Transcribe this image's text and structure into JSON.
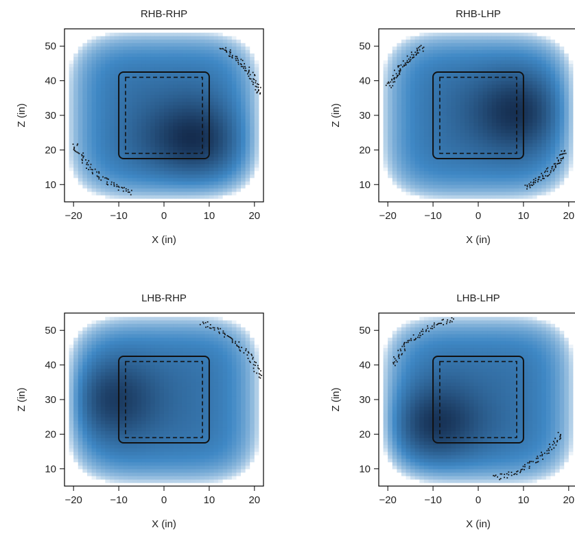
{
  "chart_data": [
    {
      "type": "heatmap",
      "title": "RHB-RHP",
      "xlabel": "X (in)",
      "ylabel": "Z (in)",
      "xlim": [
        -22,
        22
      ],
      "ylim": [
        5,
        55
      ],
      "xticks": [
        -20,
        -10,
        0,
        10,
        20
      ],
      "yticks": [
        10,
        20,
        30,
        40,
        50
      ],
      "density_peaks": [
        {
          "x": 7,
          "z": 23,
          "strength": 1.0,
          "spread": 8
        }
      ],
      "strike_zone_outer": {
        "x": [
          -10,
          10
        ],
        "z": [
          17.5,
          42.5
        ]
      },
      "strike_zone_inner": {
        "x": [
          -8.5,
          8.5
        ],
        "z": [
          19,
          41
        ]
      },
      "outlier_arcs": [
        {
          "cx": 0,
          "cz": 30,
          "rx": 22,
          "rz": 24,
          "from_deg": 15,
          "to_deg": 55
        },
        {
          "cx": 0,
          "cz": 30,
          "rx": 21,
          "rz": 24,
          "from_deg": 200,
          "to_deg": 250
        }
      ]
    },
    {
      "type": "heatmap",
      "title": "RHB-LHP",
      "xlabel": "X (in)",
      "ylabel": "Z (in)",
      "xlim": [
        -22,
        22
      ],
      "ylim": [
        5,
        55
      ],
      "xticks": [
        -20,
        -10,
        0,
        10,
        20
      ],
      "yticks": [
        10,
        20,
        30,
        40,
        50
      ],
      "density_peaks": [
        {
          "x": 10,
          "z": 31,
          "strength": 1.0,
          "spread": 8
        }
      ],
      "strike_zone_outer": {
        "x": [
          -10,
          10
        ],
        "z": [
          17.5,
          42.5
        ]
      },
      "strike_zone_inner": {
        "x": [
          -8.5,
          8.5
        ],
        "z": [
          19,
          41
        ]
      },
      "outlier_arcs": [
        {
          "cx": 0,
          "cz": 30,
          "rx": 21,
          "rz": 24,
          "from_deg": 125,
          "to_deg": 160
        },
        {
          "cx": 0,
          "cz": 30,
          "rx": 21,
          "rz": 24,
          "from_deg": 300,
          "to_deg": 335
        }
      ]
    },
    {
      "type": "heatmap",
      "title": "LHB-RHP",
      "xlabel": "X (in)",
      "ylabel": "Z (in)",
      "xlim": [
        -22,
        22
      ],
      "ylim": [
        5,
        55
      ],
      "xticks": [
        -20,
        -10,
        0,
        10,
        20
      ],
      "yticks": [
        10,
        20,
        30,
        40,
        50
      ],
      "density_peaks": [
        {
          "x": -14,
          "z": 30,
          "strength": 1.0,
          "spread": 8
        }
      ],
      "strike_zone_outer": {
        "x": [
          -10,
          10
        ],
        "z": [
          17.5,
          42.5
        ]
      },
      "strike_zone_inner": {
        "x": [
          -8.5,
          8.5
        ],
        "z": [
          19,
          41
        ]
      },
      "outlier_arcs": [
        {
          "cx": 0,
          "cz": 30,
          "rx": 22,
          "rz": 24,
          "from_deg": 15,
          "to_deg": 68
        }
      ]
    },
    {
      "type": "heatmap",
      "title": "LHB-LHP",
      "xlabel": "X (in)",
      "ylabel": "Z (in)",
      "xlim": [
        -22,
        22
      ],
      "ylim": [
        5,
        55
      ],
      "xticks": [
        -20,
        -10,
        0,
        10,
        20
      ],
      "yticks": [
        10,
        20,
        30,
        40,
        50
      ],
      "density_peaks": [
        {
          "x": -11,
          "z": 23,
          "strength": 1.0,
          "spread": 8
        }
      ],
      "strike_zone_outer": {
        "x": [
          -10,
          10
        ],
        "z": [
          17.5,
          42.5
        ]
      },
      "strike_zone_inner": {
        "x": [
          -8.5,
          8.5
        ],
        "z": [
          19,
          41
        ]
      },
      "outlier_arcs": [
        {
          "cx": 0,
          "cz": 30,
          "rx": 21,
          "rz": 24,
          "from_deg": 105,
          "to_deg": 155
        },
        {
          "cx": 0,
          "cz": 30,
          "rx": 20,
          "rz": 23,
          "from_deg": 280,
          "to_deg": 335
        }
      ]
    }
  ],
  "colors": {
    "low": "#ffffff",
    "mid": "#3f88c5",
    "high": "#13294a",
    "zone_line": "#111111"
  }
}
